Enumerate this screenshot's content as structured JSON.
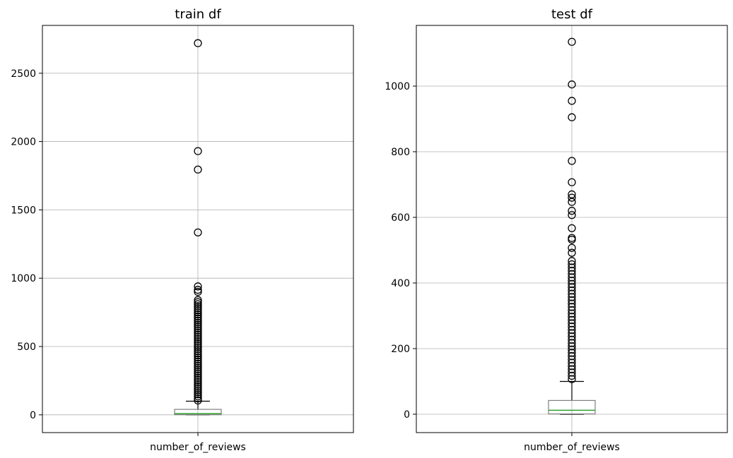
{
  "chart_data": [
    {
      "type": "box",
      "title": "train df",
      "xlabel": "",
      "ylabel": "",
      "categories": [
        "number_of_reviews"
      ],
      "ylim": [
        -130,
        2850
      ],
      "yticks": [
        0,
        500,
        1000,
        1500,
        2000,
        2500
      ],
      "grid": true,
      "box": {
        "q1": 1,
        "median": 9,
        "q3": 40,
        "whisker_low": 0,
        "whisker_high": 100
      },
      "fliers": [
        2720,
        1930,
        1795,
        1335,
        940,
        915,
        900,
        840,
        825,
        810,
        795,
        780,
        765,
        750,
        735,
        720,
        705,
        690,
        675,
        660,
        645,
        630,
        615,
        600,
        585,
        570,
        555,
        540,
        525,
        510,
        495,
        480,
        465,
        450,
        435,
        420,
        405,
        390,
        375,
        360,
        345,
        330,
        315,
        300,
        285,
        270,
        255,
        240,
        225,
        210,
        195,
        180,
        165,
        150,
        135,
        120,
        105
      ],
      "colors": {
        "box": "#7f7f7f",
        "median": "#2ca02c",
        "whisker": "#000000"
      }
    },
    {
      "type": "box",
      "title": "test df",
      "xlabel": "",
      "ylabel": "",
      "categories": [
        "number_of_reviews"
      ],
      "ylim": [
        -56,
        1185
      ],
      "yticks": [
        0,
        200,
        400,
        600,
        800,
        1000
      ],
      "grid": true,
      "box": {
        "q1": 1,
        "median": 12,
        "q3": 42,
        "whisker_low": 0,
        "whisker_high": 100
      },
      "fliers": [
        1135,
        1005,
        955,
        905,
        772,
        707,
        670,
        660,
        647,
        620,
        607,
        567,
        537,
        532,
        507,
        492,
        467,
        457,
        447,
        437,
        427,
        417,
        407,
        397,
        387,
        377,
        367,
        357,
        347,
        337,
        327,
        317,
        307,
        297,
        287,
        277,
        267,
        257,
        247,
        237,
        227,
        217,
        207,
        197,
        187,
        177,
        167,
        157,
        147,
        137,
        127,
        117,
        107
      ],
      "colors": {
        "box": "#7f7f7f",
        "median": "#2ca02c",
        "whisker": "#000000"
      }
    }
  ]
}
